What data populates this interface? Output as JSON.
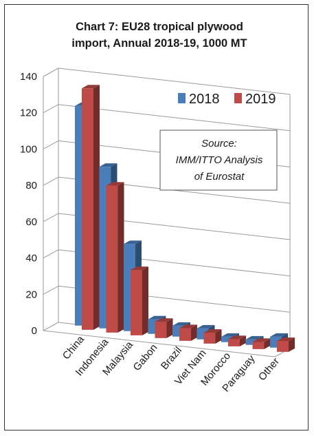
{
  "chart_data": {
    "type": "bar",
    "title_lines": [
      "Chart 7: EU28 tropical plywood",
      "import, Annual  2018-19, 1000 MT"
    ],
    "categories": [
      "China",
      "Indonesia",
      "Malaysia",
      "Gabon",
      "Brazil",
      "Viet Nam",
      "Morocco",
      "Paraguay",
      "Other"
    ],
    "series": [
      {
        "name": "2018",
        "values": [
          121,
          89,
          48,
          8,
          6,
          6,
          3,
          3,
          6
        ],
        "color": "#4a7ebb"
      },
      {
        "name": "2019",
        "values": [
          133,
          81,
          36,
          9,
          7,
          6,
          4,
          4,
          6
        ],
        "color": "#be4b48"
      }
    ],
    "yticks": [
      "0",
      "20",
      "40",
      "60",
      "80",
      "100",
      "120",
      "140"
    ],
    "ylim": [
      0,
      140
    ],
    "grid": true,
    "legend_position": "top-right",
    "annotation_lines": [
      "Source:",
      "IMM/ITTO Analysis",
      "of Eurostat"
    ]
  }
}
